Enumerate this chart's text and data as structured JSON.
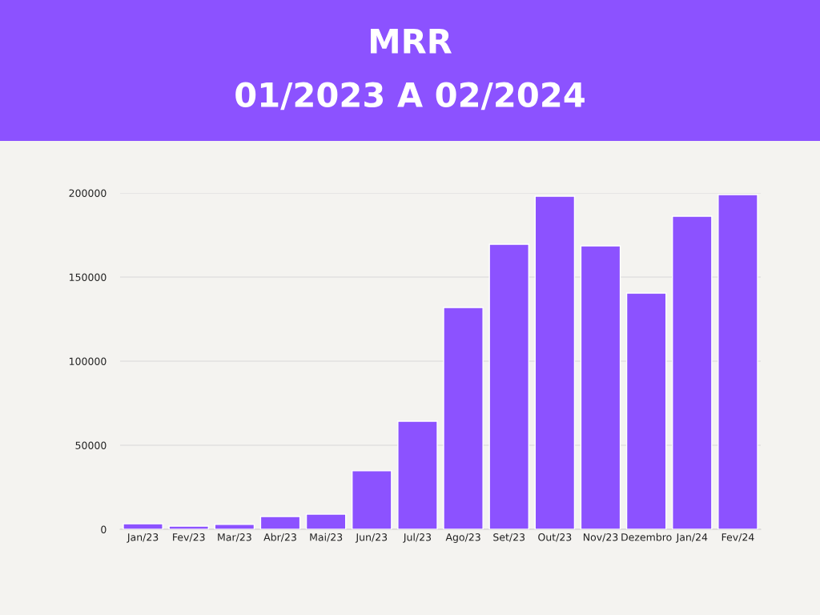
{
  "chart_data": {
    "type": "bar",
    "title": "MRR",
    "subtitle": "01/2023 A 02/2024",
    "categories": [
      "Jan/23",
      "Fev/23",
      "Mar/23",
      "Abr/23",
      "Mai/23",
      "Jun/23",
      "Jul/23",
      "Ago/23",
      "Set/23",
      "Out/23",
      "Nov/23",
      "Dezembro",
      "Jan/24",
      "Fev/24"
    ],
    "values": [
      3300,
      1900,
      2900,
      7600,
      9000,
      34800,
      64300,
      131900,
      169500,
      198100,
      168600,
      140500,
      186200,
      199000
    ],
    "color": "#8c52ff",
    "ylim": [
      0,
      200000
    ],
    "yticks": [
      0,
      50000,
      100000,
      150000,
      200000
    ],
    "grid": "y"
  }
}
